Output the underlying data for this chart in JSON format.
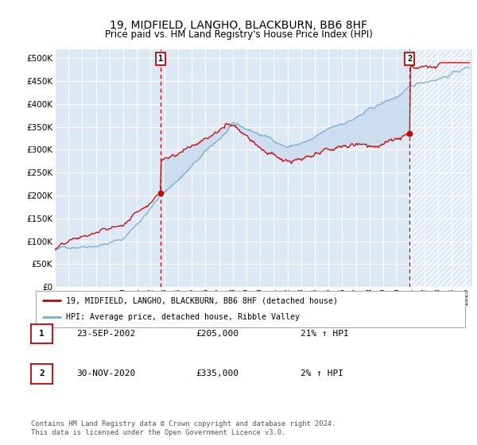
{
  "title": "19, MIDFIELD, LANGHO, BLACKBURN, BB6 8HF",
  "subtitle": "Price paid vs. HM Land Registry's House Price Index (HPI)",
  "bg_color": "#dce9f5",
  "legend_line1": "19, MIDFIELD, LANGHO, BLACKBURN, BB6 8HF (detached house)",
  "legend_line2": "HPI: Average price, detached house, Ribble Valley",
  "note1_date": "23-SEP-2002",
  "note1_price": "£205,000",
  "note1_hpi": "21% ↑ HPI",
  "note2_date": "30-NOV-2020",
  "note2_price": "£335,000",
  "note2_hpi": "2% ↑ HPI",
  "footer": "Contains HM Land Registry data © Crown copyright and database right 2024.\nThis data is licensed under the Open Government Licence v3.0.",
  "red_color": "#cc0000",
  "blue_color": "#7aaacc",
  "fill_color": "#c8ddf0",
  "ylim": [
    0,
    520000
  ],
  "yticks": [
    0,
    50000,
    100000,
    150000,
    200000,
    250000,
    300000,
    350000,
    400000,
    450000,
    500000
  ],
  "marker1_year": 2002.73,
  "marker1_price": 205000,
  "marker2_year": 2020.92,
  "marker2_price": 335000,
  "vline1_year": 2002.73,
  "vline2_year": 2020.92
}
